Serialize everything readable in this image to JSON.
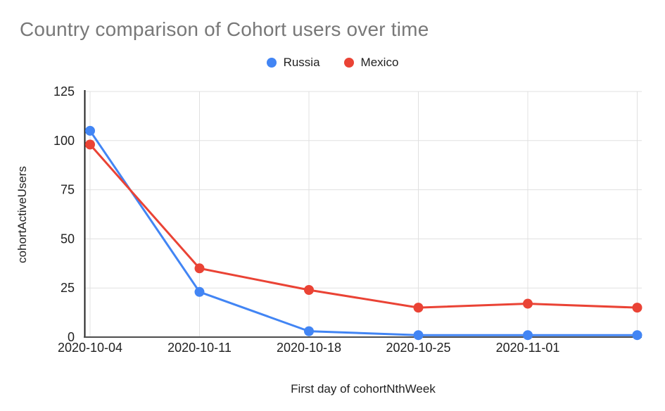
{
  "chart": {
    "title": "Country comparison of Cohort users over time"
  },
  "chart_data": {
    "type": "line",
    "title": "Country comparison of Cohort users over time",
    "xlabel": "First day of cohortNthWeek",
    "ylabel": "cohortActiveUsers",
    "x_tick_labels": [
      "2020-10-04",
      "2020-10-11",
      "2020-10-18",
      "2020-10-25",
      "2020-11-01"
    ],
    "num_points": 6,
    "ylim": [
      0,
      125
    ],
    "y_ticks": [
      0,
      25,
      50,
      75,
      100,
      125
    ],
    "grid": true,
    "legend_position": "top-center",
    "series": [
      {
        "name": "Russia",
        "color": "#4285F4",
        "values": [
          105,
          23,
          3,
          1,
          1,
          1
        ]
      },
      {
        "name": "Mexico",
        "color": "#EA4335",
        "values": [
          98,
          35,
          24,
          15,
          17,
          15
        ]
      }
    ]
  }
}
